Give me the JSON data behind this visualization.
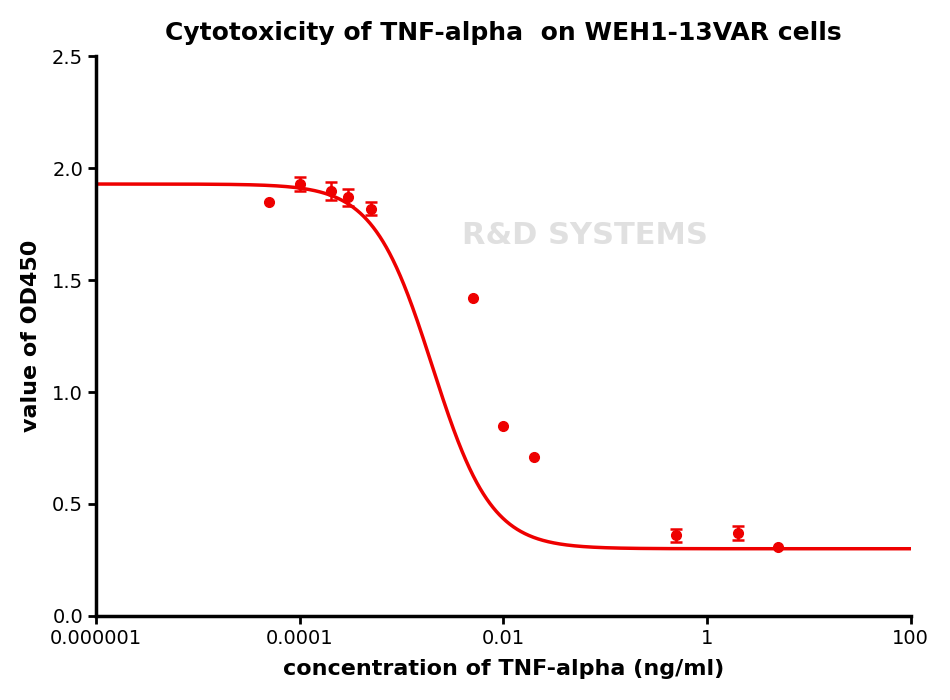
{
  "title": "Cytotoxicity of TNF-alpha  on WEH1-13VAR cells",
  "xlabel": "concentration of TNF-alpha (ng/ml)",
  "ylabel": "value of OD450",
  "curve_color": "#EE0000",
  "point_color": "#EE0000",
  "background_color": "#FFFFFF",
  "xlim_log": [
    -6,
    2
  ],
  "ylim": [
    0.0,
    2.5
  ],
  "yticks": [
    0.0,
    0.5,
    1.0,
    1.5,
    2.0,
    2.5
  ],
  "xtick_labels": [
    "0.000001",
    "0.0001",
    "0.01",
    "1",
    "100"
  ],
  "xtick_positions": [
    1e-06,
    0.0001,
    0.01,
    1.0,
    100.0
  ],
  "data_x": [
    5e-05,
    0.0001,
    0.0002,
    0.0003,
    0.0005,
    0.005,
    0.01,
    0.02,
    0.5,
    2.0,
    5.0
  ],
  "data_y": [
    1.85,
    1.93,
    1.9,
    1.87,
    1.82,
    1.42,
    0.85,
    0.71,
    0.36,
    0.37,
    0.31
  ],
  "data_yerr": [
    0.0,
    0.03,
    0.04,
    0.04,
    0.03,
    0.0,
    0.0,
    0.0,
    0.03,
    0.03,
    0.0
  ],
  "title_fontsize": 18,
  "axis_label_fontsize": 16,
  "tick_fontsize": 14,
  "linewidth": 2.5,
  "marker_size": 7
}
